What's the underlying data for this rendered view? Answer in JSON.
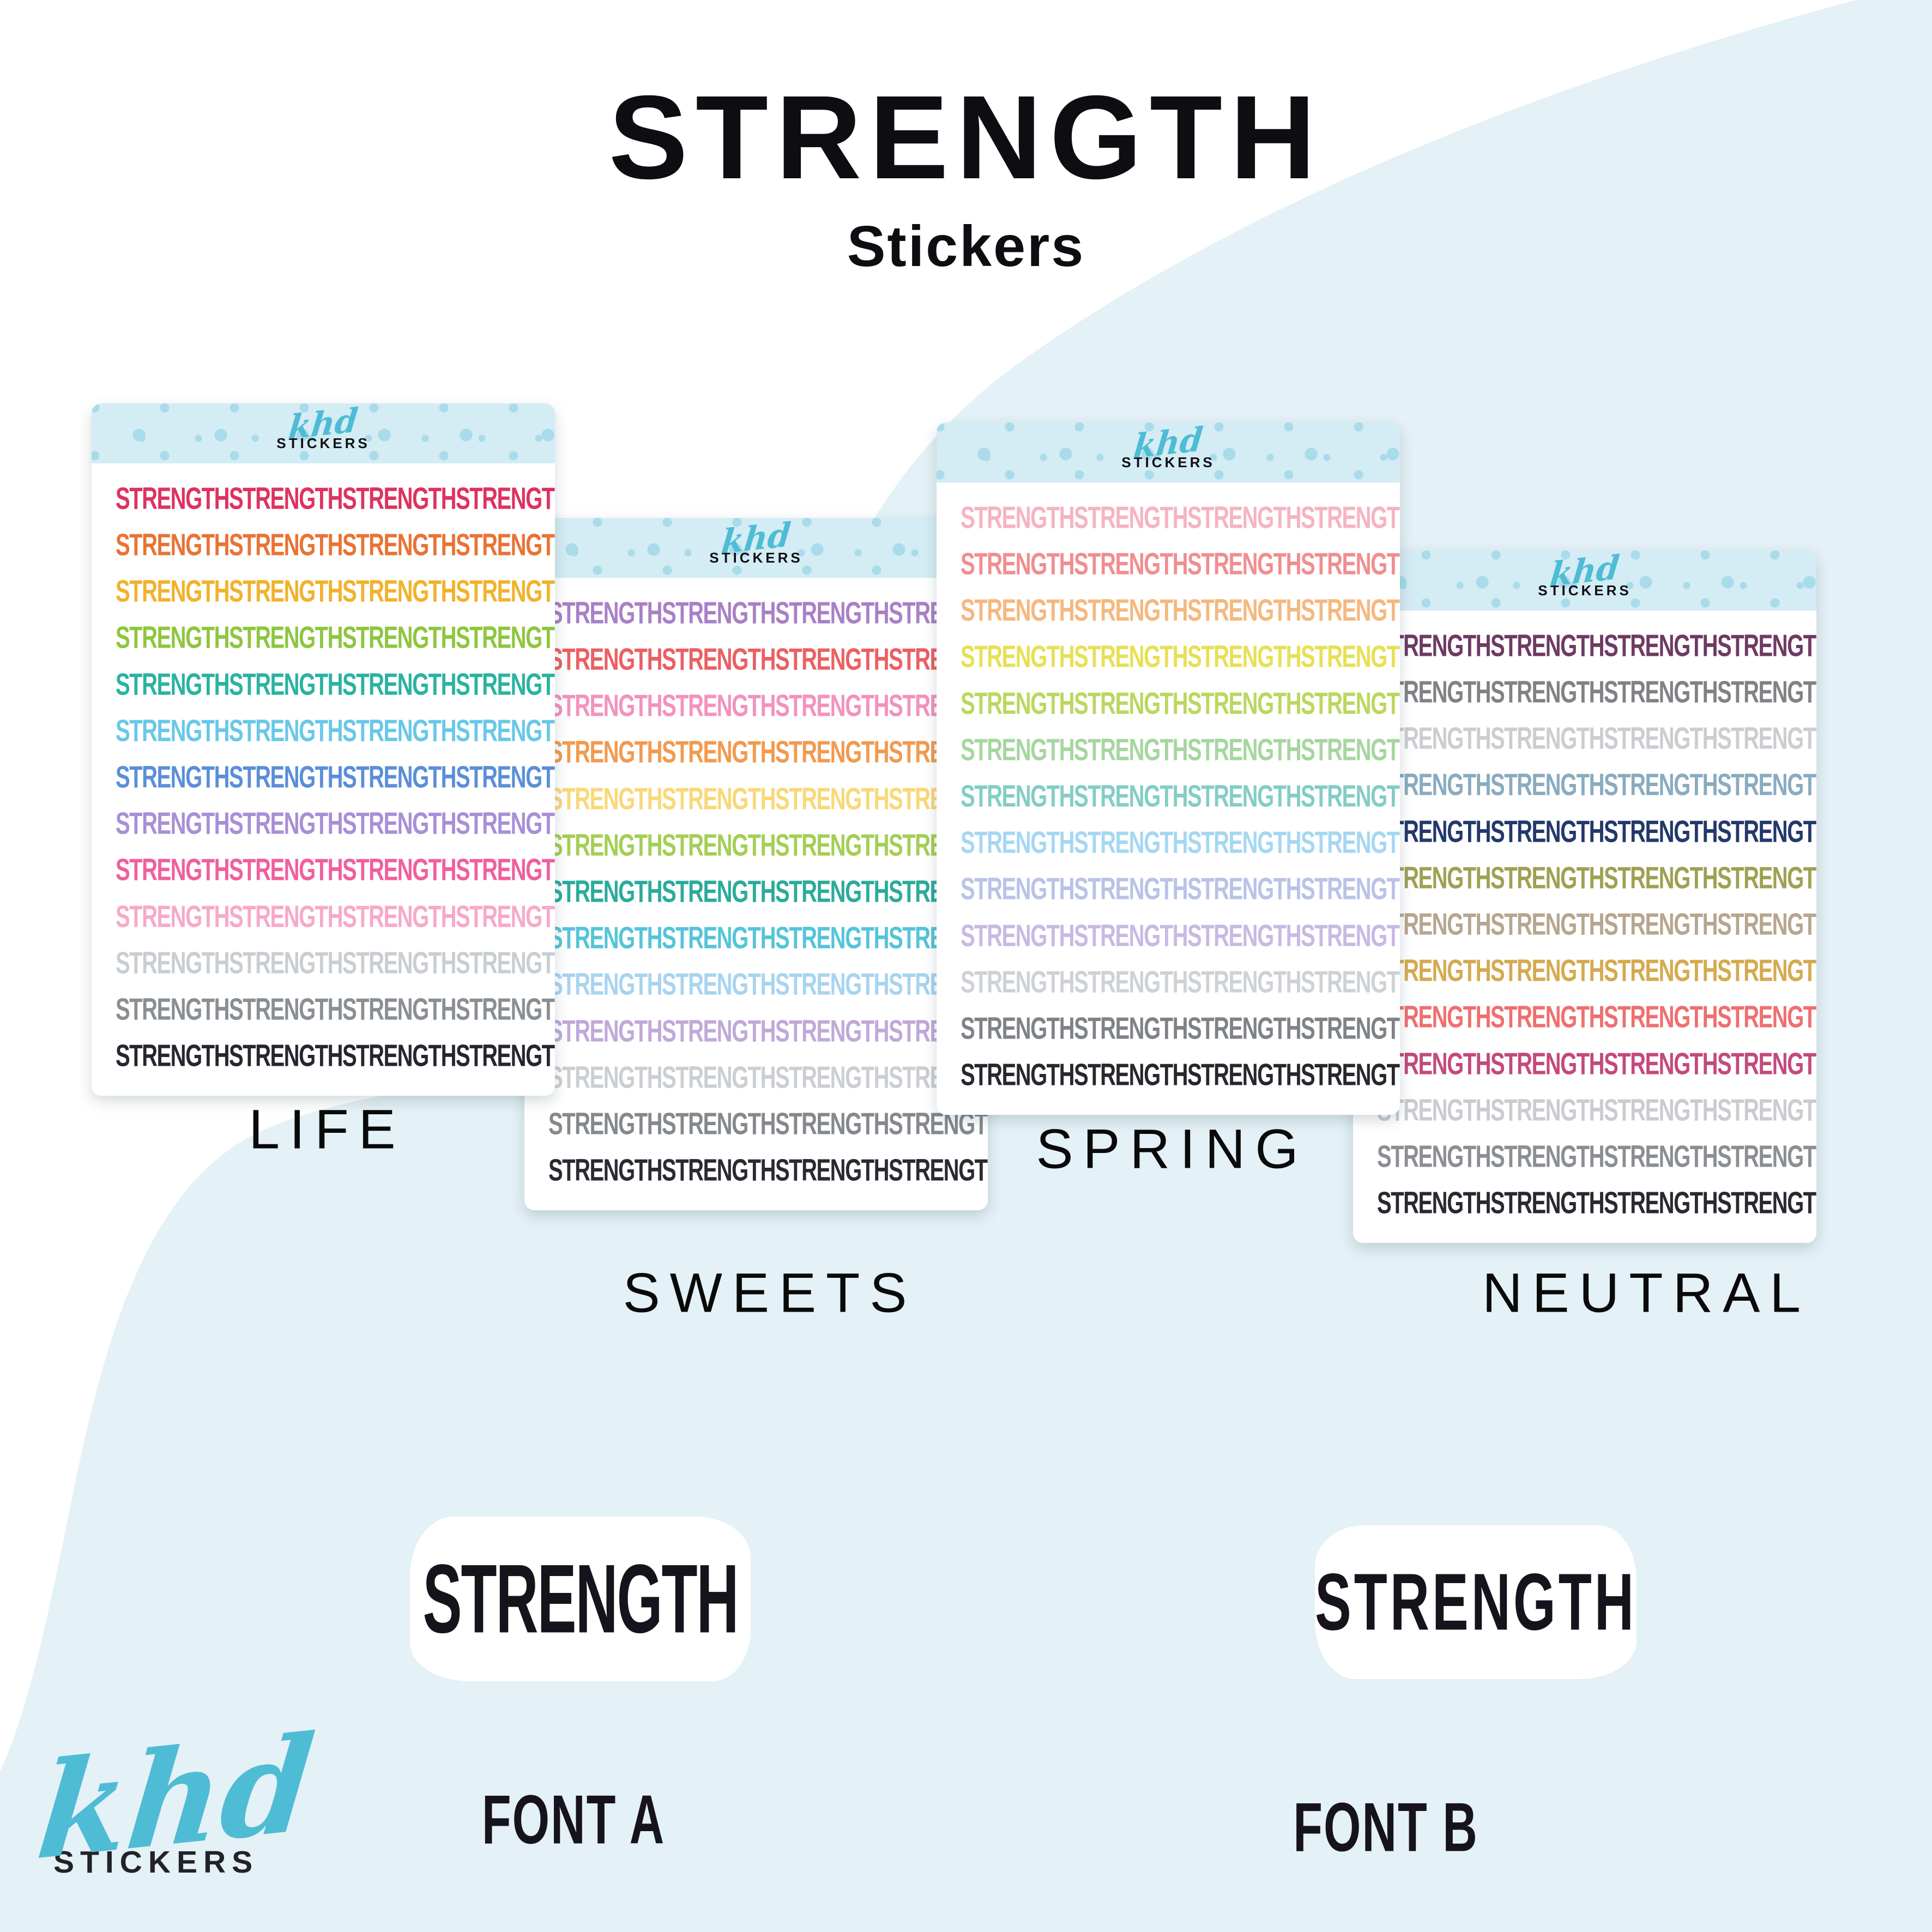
{
  "title": {
    "main": "STRENGTH",
    "subtitle": "Stickers"
  },
  "brand": {
    "logo_script": "khd",
    "logo_word": "STICKERS"
  },
  "sticker_word": "STRENGTH",
  "sheets": [
    {
      "label": "LIFE",
      "colors": [
        "#dd3360",
        "#e97334",
        "#f1b22c",
        "#8ec63f",
        "#2ab3a2",
        "#69c8e8",
        "#5a8fd8",
        "#a88fd6",
        "#f05f9e",
        "#f7a9c8",
        "#c9ced3",
        "#8a8f94",
        "#27262f"
      ]
    },
    {
      "label": "SWEETS",
      "colors": [
        "#a980c6",
        "#ea6064",
        "#f392be",
        "#f29a4f",
        "#f8d878",
        "#a3cf54",
        "#2bab9b",
        "#55c4d9",
        "#a7d4f0",
        "#c0a9d9",
        "#cbced2",
        "#85898d",
        "#2b2a32"
      ]
    },
    {
      "label": "SPRING",
      "colors": [
        "#f6b3c1",
        "#f08e90",
        "#f5b87f",
        "#e7e055",
        "#bcd75f",
        "#a6d6a0",
        "#83cdc5",
        "#a5d7f2",
        "#b9c3e8",
        "#c8b9e4",
        "#ced2d6",
        "#7f8387",
        "#28272e"
      ]
    },
    {
      "label": "NEUTRAL",
      "colors": [
        "#6e3a63",
        "#808285",
        "#cccdd1",
        "#8aabc0",
        "#23386b",
        "#9fa152",
        "#b7a68f",
        "#d5aa4f",
        "#ef6f70",
        "#c34a7d",
        "#caccd1",
        "#8b8e93",
        "#2a2830"
      ]
    }
  ],
  "font_samples": [
    {
      "label": "FONT A",
      "word": "STRENGTH"
    },
    {
      "label": "FONT B",
      "word": "STRENGTH"
    }
  ],
  "colors": {
    "background_accent": "#e4f1f6",
    "header_band": "#d4ecf4",
    "header_dots": "#a9dbea",
    "brand_teal": "#4fbcd5",
    "text_ink": "#0d0d12"
  }
}
